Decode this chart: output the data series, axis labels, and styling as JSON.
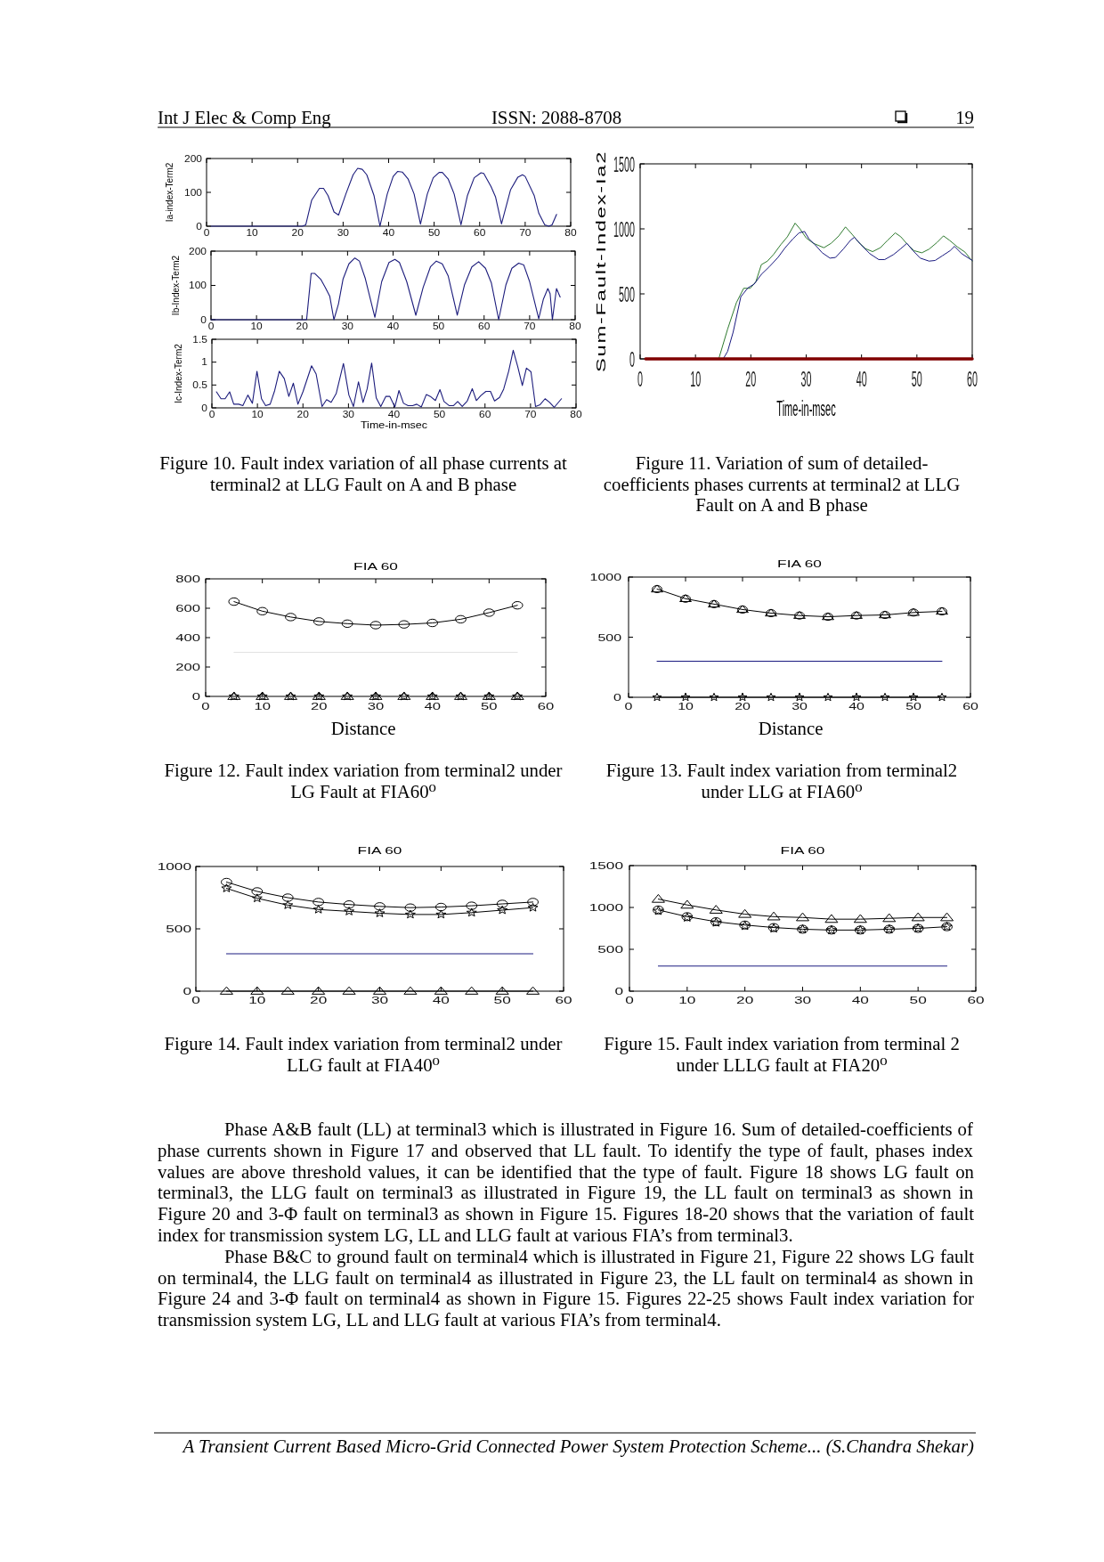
{
  "chart_data": [
    {
      "type": "line",
      "ylabel": "Ia-index-Term2",
      "xlim": [
        0,
        80
      ],
      "xticks": [
        0,
        10,
        20,
        30,
        40,
        50,
        60,
        70,
        80
      ],
      "ylim": [
        0,
        200
      ],
      "yticks": [
        0,
        100,
        200
      ],
      "series": [
        {
          "color": "#1c1c7c",
          "x": [
            1,
            21,
            21.8,
            23.1,
            24.8,
            25.7,
            26.7,
            28,
            29,
            30.6,
            32.2,
            33.2,
            34.2,
            35.2,
            36.8,
            38.1,
            39.7,
            41,
            42,
            43,
            44.3,
            45.6,
            47,
            48.5,
            49.8,
            51.1,
            51.8,
            53.1,
            54.4,
            55.9,
            57.3,
            58.8,
            60.3,
            60.9,
            62.5,
            63.5,
            64.8,
            66.8,
            68.4,
            69.4,
            70,
            72,
            73,
            74.3,
            75.2,
            75.9,
            76.9
          ],
          "values": [
            0,
            0,
            4,
            77,
            112,
            112,
            90,
            42,
            33,
            95,
            152,
            171,
            168,
            152,
            90,
            0,
            95,
            147,
            162,
            160,
            139,
            95,
            6,
            95,
            143,
            159,
            159,
            139,
            95,
            4,
            90,
            143,
            158,
            156,
            117,
            86,
            7,
            108,
            145,
            152,
            147,
            90,
            38,
            4,
            0,
            4,
            35
          ]
        }
      ],
      "annotations": [
        "Int J Elec & Comp Eng",
        "ISSN: 2088-8708",
        "19"
      ]
    },
    {
      "type": "line",
      "ylabel": "Ib-Index-Term2",
      "xlim": [
        0,
        80
      ],
      "xticks": [
        0,
        10,
        20,
        30,
        40,
        50,
        60,
        70,
        80
      ],
      "ylim": [
        0,
        200
      ],
      "yticks": [
        0,
        100,
        200
      ],
      "series": [
        {
          "color": "#1c1c7c",
          "x": [
            0,
            21,
            22,
            22.8,
            24.1,
            25.1,
            26.1,
            27,
            28,
            29,
            30.3,
            31.6,
            32.6,
            33.9,
            36,
            37.5,
            39.1,
            40.4,
            41.4,
            43,
            45,
            46.6,
            48.2,
            49.5,
            50.8,
            52.1,
            54.1,
            55.7,
            57.3,
            58.8,
            60.3,
            61.6,
            63.2,
            64.8,
            66.1,
            67.6,
            68.7,
            70,
            72,
            73,
            74,
            74.5,
            75,
            75.9,
            76.7
          ],
          "values": [
            0,
            0,
            135,
            135,
            118,
            94,
            68,
            0,
            46,
            118,
            163,
            180,
            171,
            120,
            7,
            111,
            167,
            176,
            167,
            111,
            13,
            94,
            154,
            171,
            163,
            128,
            13,
            102,
            154,
            169,
            150,
            107,
            0,
            102,
            150,
            165,
            160,
            111,
            3,
            59,
            91,
            76,
            0,
            91,
            66
          ]
        }
      ]
    },
    {
      "type": "line",
      "xlabel": "Time-in-msec",
      "ylabel": "Ic-Index-Term2",
      "xlim": [
        0,
        80
      ],
      "xticks": [
        0,
        10,
        20,
        30,
        40,
        50,
        60,
        70,
        80
      ],
      "ylim": [
        0,
        1.5
      ],
      "yticks": [
        0,
        0.5,
        1,
        1.5
      ],
      "series": [
        {
          "color": "#1c1c7c",
          "x": [
            1,
            2,
            2.9,
            3.9,
            4.8,
            5.9,
            6.8,
            7.9,
            8.9,
            9.9,
            10.9,
            11.8,
            12.8,
            13.8,
            14.8,
            15.9,
            16.9,
            17.9,
            18.9,
            20,
            21.9,
            22.9,
            24.2,
            25.2,
            26.2,
            27.3,
            28.9,
            30.1,
            31.1,
            32.2,
            33.2,
            34.1,
            35.1,
            36.1,
            37.1,
            38.2,
            39.1,
            40.2,
            41.1,
            42.1,
            43.1,
            44.1,
            45,
            46,
            47.1,
            48,
            49.1,
            50.1,
            51,
            52.1,
            53.1,
            54,
            55,
            56.1,
            57.2,
            58.1,
            59.1,
            60.2,
            61.2,
            62.1,
            63.2,
            64.1,
            65.2,
            66.2,
            67.2,
            68.2,
            69.1,
            70.1,
            71.1,
            72.1,
            73.2,
            74.2,
            75.2,
            76.8
          ],
          "values": [
            0.35,
            0.2,
            0.2,
            0.35,
            0.08,
            0.08,
            0.05,
            0.28,
            0.1,
            0.8,
            0.2,
            0.05,
            0.08,
            0.38,
            0.8,
            0.64,
            0.25,
            0.54,
            0.08,
            0.35,
            0.92,
            0.74,
            0.03,
            0.18,
            0.12,
            0.31,
            0.97,
            0.28,
            0.03,
            0.57,
            0.12,
            0.41,
            0.98,
            0.22,
            0.03,
            0.25,
            0.25,
            0.02,
            0.38,
            0.1,
            0.05,
            0.05,
            0.08,
            0.02,
            0.29,
            0.25,
            0.16,
            0.4,
            0.14,
            0.05,
            0.05,
            0.14,
            0.03,
            0.15,
            0.42,
            0.16,
            0.27,
            0.36,
            0.36,
            0.15,
            0.23,
            0.41,
            0.8,
            1.26,
            0.9,
            0.49,
            0.87,
            0.79,
            0.03,
            0.07,
            0.2,
            0.12,
            0.01,
            0.2
          ]
        }
      ],
      "annotations": [
        "Figure 10. Fault index variation of all phase currents at terminal2 at LLG Fault on A and B phase"
      ]
    },
    {
      "type": "line",
      "xlabel": "Time-in-msec",
      "ylabel": "Sum-Fault-Index-Ia2",
      "xlim": [
        0,
        60
      ],
      "xticks": [
        0,
        10,
        20,
        30,
        40,
        50,
        60
      ],
      "ylim": [
        0,
        1500
      ],
      "yticks": [
        0,
        500,
        1000,
        1500
      ],
      "series": [
        {
          "color": "#2e7a2e",
          "x": [
            14.2,
            15.8,
            17.4,
            18.7,
            19.9,
            20.9,
            21.9,
            23,
            24.1,
            25.4,
            26.6,
            28,
            28.9,
            30,
            31.3,
            33.2,
            34.5,
            35.9,
            37.1,
            38.3,
            39.4,
            40.7,
            42,
            43.4,
            44.7,
            46.1,
            47.1,
            48.2,
            49.5,
            50.9,
            52.2,
            53.6,
            54.8,
            55.9,
            57.3,
            58.7,
            60
          ],
          "values": [
            0,
            228,
            433,
            543,
            543,
            593,
            725,
            752,
            803,
            878,
            939,
            1044,
            999,
            930,
            889,
            855,
            889,
            946,
            1015,
            958,
            901,
            848,
            825,
            855,
            912,
            969,
            939,
            885,
            832,
            816,
            844,
            894,
            946,
            912,
            862,
            821,
            752
          ]
        },
        {
          "color": "#1a1a80",
          "x": [
            15,
            15.8,
            16.8,
            18.2,
            19.5,
            20.6,
            21.9,
            23.3,
            24.9,
            26.2,
            27.6,
            28.7,
            29.7,
            30.5,
            31.6,
            32.9,
            34.3,
            35.3,
            36.7,
            38,
            38.7,
            39.9,
            41.5,
            43.1,
            44.2,
            45.8,
            47.1,
            48.2,
            49.3,
            50.6,
            52.2,
            53.3,
            54.6,
            56,
            56.8,
            58.1,
            60
          ],
          "values": [
            0,
            57,
            205,
            479,
            547,
            575,
            650,
            707,
            780,
            855,
            923,
            969,
            980,
            923,
            878,
            816,
            775,
            780,
            844,
            912,
            935,
            878,
            809,
            764,
            764,
            803,
            848,
            889,
            832,
            775,
            752,
            757,
            793,
            832,
            866,
            809,
            757
          ]
        },
        {
          "color": "#800000",
          "x": [
            1,
            60
          ],
          "values": [
            0,
            0
          ]
        }
      ],
      "annotations": [
        "Figure 11. Variation of sum of detailed-coefficients phases currents at terminal2 at LLG Fault on A and B phase"
      ]
    },
    {
      "type": "line",
      "title": "FIA 60",
      "xlabel": "Distance",
      "x": [
        5,
        10,
        15,
        20,
        25,
        30,
        35,
        40,
        45,
        50,
        55
      ],
      "xlim": [
        0,
        60
      ],
      "xticks": [
        0,
        10,
        20,
        30,
        40,
        50,
        60
      ],
      "ylim": [
        0,
        800
      ],
      "yticks": [
        0,
        200,
        400,
        600,
        800
      ],
      "series": [
        {
          "color": "#000000",
          "marker": "circle",
          "values": [
            645,
            580,
            540,
            510,
            495,
            485,
            490,
            500,
            525,
            570,
            620
          ]
        },
        {
          "color": "#e2e2e2",
          "x": [
            5,
            55
          ],
          "values": [
            300,
            300
          ]
        },
        {
          "type": "scatter",
          "color": "#000000",
          "marker": "star",
          "values": [
            0,
            0,
            0,
            0,
            0,
            0,
            0,
            0,
            0,
            0,
            0
          ]
        },
        {
          "type": "scatter",
          "color": "#000000",
          "marker": "triangle",
          "values": [
            0,
            0,
            0,
            0,
            0,
            0,
            0,
            0,
            0,
            0,
            0
          ]
        }
      ],
      "annotations": [
        "Figure 12. Fault index variation from terminal2 under LG Fault at FIA60⁰"
      ]
    },
    {
      "type": "line",
      "title": "FIA 60",
      "xlabel": "Distance",
      "x": [
        5,
        10,
        15,
        20,
        25,
        30,
        35,
        40,
        45,
        50,
        55
      ],
      "xlim": [
        0,
        60
      ],
      "xticks": [
        0,
        10,
        20,
        30,
        40,
        50,
        60
      ],
      "ylim": [
        0,
        1000
      ],
      "yticks": [
        0,
        500,
        1000
      ],
      "series": [
        {
          "color": "#000000",
          "values": [
            900,
            820,
            775,
            730,
            700,
            680,
            670,
            680,
            685,
            705,
            715
          ]
        },
        {
          "type": "scatter",
          "color": "#000000",
          "marker": "circle",
          "values": [
            900,
            820,
            775,
            730,
            700,
            680,
            670,
            680,
            685,
            705,
            715
          ]
        },
        {
          "type": "scatter",
          "color": "#000000",
          "marker": "triangle",
          "values": [
            900,
            820,
            775,
            730,
            700,
            680,
            670,
            680,
            685,
            705,
            715
          ]
        },
        {
          "color": "#1a1a80",
          "x": [
            5,
            55
          ],
          "values": [
            300,
            300
          ]
        },
        {
          "color": "#000000",
          "marker": "star",
          "values": [
            0,
            0,
            0,
            0,
            0,
            0,
            0,
            0,
            0,
            0,
            0
          ]
        }
      ],
      "annotations": [
        "Figure 13. Fault index variation from terminal2 under LLG at FIA60⁰"
      ]
    },
    {
      "type": "line",
      "title": "FIA 60",
      "x": [
        5,
        10,
        15,
        20,
        25,
        30,
        35,
        40,
        45,
        50,
        55
      ],
      "xlim": [
        0,
        60
      ],
      "xticks": [
        0,
        10,
        20,
        30,
        40,
        50,
        60
      ],
      "ylim": [
        0,
        1000
      ],
      "yticks": [
        0,
        500,
        1000
      ],
      "series": [
        {
          "color": "#000000",
          "marker": "circle",
          "values": [
            875,
            800,
            750,
            715,
            695,
            680,
            670,
            675,
            685,
            700,
            715
          ]
        },
        {
          "color": "#000000",
          "marker": "star",
          "values": [
            825,
            745,
            690,
            655,
            640,
            625,
            615,
            615,
            630,
            650,
            670
          ]
        },
        {
          "color": "#1a1a80",
          "x": [
            5,
            55
          ],
          "values": [
            300,
            300
          ]
        },
        {
          "color": "#000000",
          "marker": "triangle",
          "values": [
            0,
            0,
            0,
            0,
            0,
            0,
            0,
            0,
            0,
            0,
            0
          ]
        }
      ],
      "annotations": [
        "Figure 14. Fault index variation from terminal2 under LLG fault at FIA40⁰"
      ]
    },
    {
      "type": "line",
      "title": "FIA 60",
      "x": [
        5,
        10,
        15,
        20,
        25,
        30,
        35,
        40,
        45,
        50,
        55
      ],
      "xlim": [
        0,
        60
      ],
      "xticks": [
        0,
        10,
        20,
        30,
        40,
        50,
        60
      ],
      "ylim": [
        0,
        1500
      ],
      "yticks": [
        0,
        500,
        1000,
        1500
      ],
      "series": [
        {
          "color": "#000000",
          "marker": "triangle",
          "values": [
            1100,
            1030,
            970,
            920,
            890,
            880,
            860,
            860,
            870,
            880,
            880
          ]
        },
        {
          "color": "#000000",
          "marker": "circle",
          "values": [
            970,
            890,
            830,
            790,
            760,
            740,
            730,
            730,
            740,
            750,
            770
          ]
        },
        {
          "type": "scatter",
          "color": "#000000",
          "marker": "star",
          "values": [
            960,
            880,
            820,
            780,
            750,
            740,
            730,
            730,
            740,
            750,
            770
          ]
        },
        {
          "color": "#1a1a80",
          "x": [
            5,
            55
          ],
          "values": [
            300,
            300
          ]
        }
      ],
      "annotations": [
        "Figure 15. Fault index variation from terminal 2 under LLLG fault at FIA20⁰",
        "Phase A&B fault (LL) at terminal3 which is illustrated in Figure 16. Sum of detailed-coefficients of phase currents shown in Figure 17 and observed that LL fault. To identify the type of fault, phases index values are above threshold values, it can be identified that the type of fault. Figure 18 shows LG fault on terminal3, the LLG fault on terminal3 as illustrated in Figure 19, the LL fault on terminal3 as shown in Figure 20 and 3-Φ fault on terminal3 as shown in Figure 15. Figures 18-20 shows that the variation of fault index for transmission system LG, LL and LLG fault at various FIA’s from terminal3.",
        "Phase B&C to ground fault on terminal4 which is illustrated in Figure 21, Figure 22 shows LG fault on terminal4, the LLG fault on terminal4 as illustrated in Figure 23, the LL fault on terminal4 as shown in Figure 24 and 3-Φ fault on terminal4 as shown in Figure 15. Figures 22-25 shows Fault index variation for transmission system LG, LL and LLG fault at various FIA’s from terminal4.",
        "A Transient Current Based Micro-Grid Connected Power System Protection Scheme... (S.Chandra Shekar)"
      ]
    }
  ]
}
